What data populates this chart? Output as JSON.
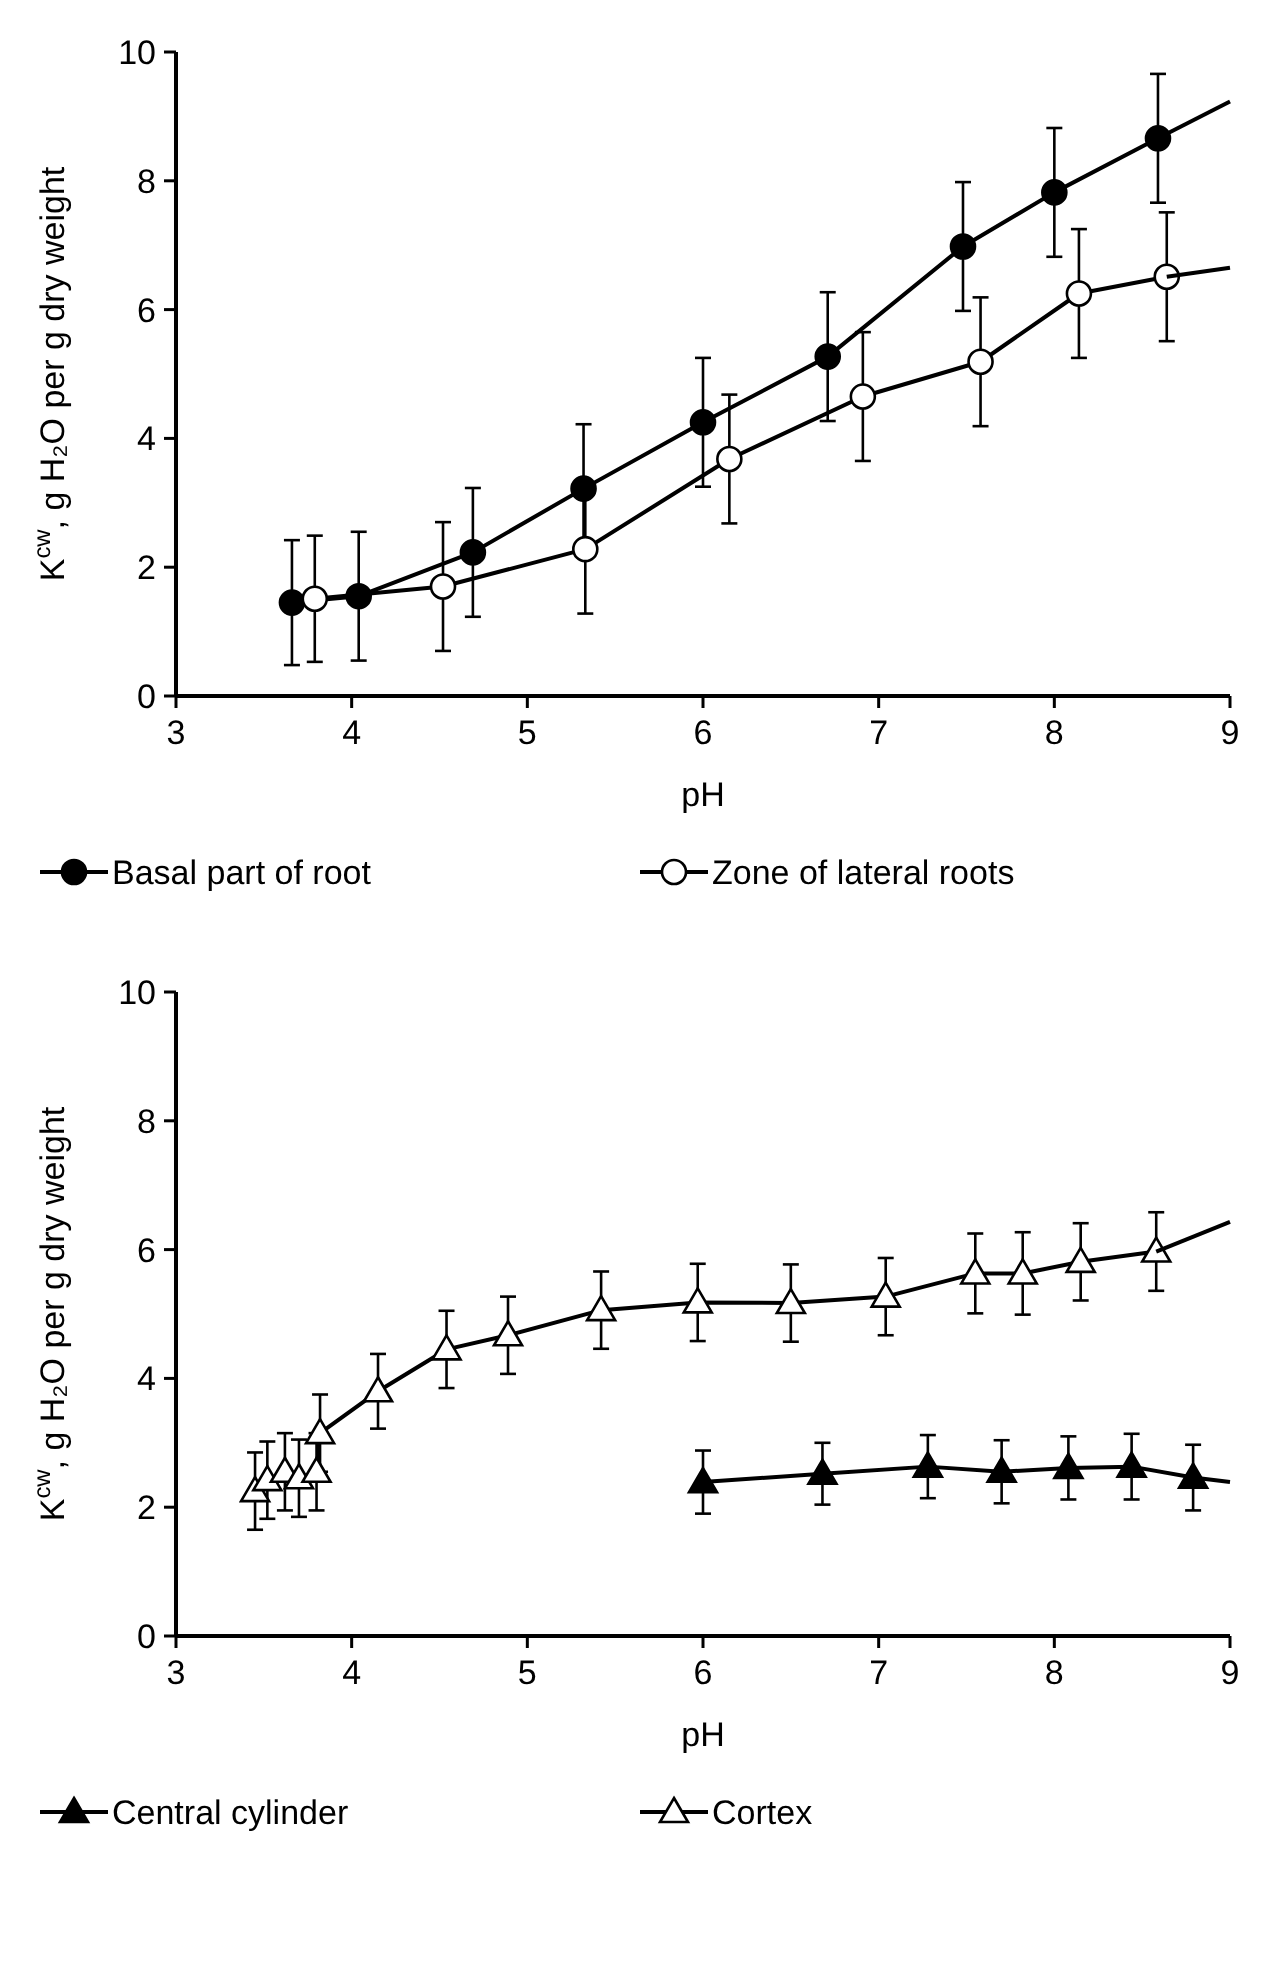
{
  "chart_data": [
    {
      "type": "line",
      "xlabel": "pH",
      "ylabel": "K$^{cw}$, g H₂O per g dry weight",
      "xlim": [
        3,
        9
      ],
      "ylim": [
        0,
        10
      ],
      "xticks": [
        3,
        4,
        5,
        6,
        7,
        8,
        9
      ],
      "yticks": [
        0,
        2,
        4,
        6,
        8,
        10
      ],
      "legend": "bottom",
      "line_style": "solid",
      "series": [
        {
          "name": "Basal part of root",
          "color": "#000000",
          "marker": "circle",
          "x": [
            3.66,
            4.04,
            4.69,
            5.32,
            6.0,
            6.71,
            7.48,
            8.0,
            8.59
          ],
          "values": [
            1.45,
            1.55,
            2.23,
            3.22,
            4.25,
            5.27,
            6.98,
            7.82,
            8.66
          ],
          "errors": [
            0.97,
            1.0,
            1.0,
            1.0,
            1.0,
            1.0,
            1.0,
            1.0,
            1.0
          ]
        },
        {
          "color": "#000000",
          "marker": "none",
          "x": [
            8.59,
            9
          ],
          "values": [
            8.66,
            9.23
          ]
        },
        {
          "name": "Zone of lateral roots",
          "color": "#000000",
          "marker": "circle-open",
          "x": [
            3.79,
            4.52,
            5.33,
            6.15,
            6.91,
            7.58,
            8.14,
            8.64
          ],
          "values": [
            1.51,
            1.7,
            2.28,
            3.68,
            4.65,
            5.19,
            6.25,
            6.51
          ],
          "errors": [
            0.98,
            1.0,
            1.0,
            1.0,
            1.0,
            1.0,
            1.0,
            1.0
          ]
        },
        {
          "color": "#000000",
          "marker": "none",
          "x": [
            8.64,
            9
          ],
          "values": [
            6.51,
            6.65
          ]
        }
      ]
    },
    {
      "type": "line",
      "xlabel": "pH",
      "ylabel": "K$^{cw}$, g H₂O per g dry weight",
      "xlim": [
        3,
        9
      ],
      "ylim": [
        0,
        10
      ],
      "xticks": [
        3,
        4,
        5,
        6,
        7,
        8,
        9
      ],
      "yticks": [
        0,
        2,
        4,
        6,
        8,
        10
      ],
      "legend": "bottom",
      "line_style": "solid",
      "series": [
        {
          "name": "Central cylinder",
          "color": "#000000",
          "marker": "triangle",
          "x": [
            6.0,
            6.68,
            7.28,
            7.7,
            8.08,
            8.44,
            8.79
          ],
          "values": [
            2.39,
            2.52,
            2.63,
            2.55,
            2.61,
            2.63,
            2.46
          ],
          "errors": [
            0.49,
            0.48,
            0.49,
            0.49,
            0.49,
            0.51,
            0.51
          ]
        },
        {
          "color": "#000000",
          "marker": "none",
          "x": [
            8.79,
            9
          ],
          "values": [
            2.46,
            2.39
          ]
        },
        {
          "name": "Cortex",
          "color": "#000000",
          "marker": "triangle-open",
          "x": [
            3.45,
            3.52,
            3.62,
            3.7,
            3.8,
            3.82,
            4.15,
            4.54,
            4.89,
            5.42,
            5.97,
            6.5,
            7.04,
            7.55,
            7.82,
            8.15,
            8.58
          ],
          "values": [
            2.25,
            2.42,
            2.55,
            2.45,
            2.55,
            3.15,
            3.8,
            4.45,
            4.67,
            5.06,
            5.18,
            5.17,
            5.27,
            5.63,
            5.63,
            5.81,
            5.97
          ],
          "errors": [
            0.6,
            0.6,
            0.6,
            0.6,
            0.6,
            0.6,
            0.58,
            0.6,
            0.6,
            0.6,
            0.6,
            0.6,
            0.6,
            0.62,
            0.64,
            0.6,
            0.61
          ]
        },
        {
          "color": "#000000",
          "marker": "none",
          "x": [
            8.58,
            9
          ],
          "values": [
            5.97,
            6.43
          ]
        }
      ]
    }
  ]
}
